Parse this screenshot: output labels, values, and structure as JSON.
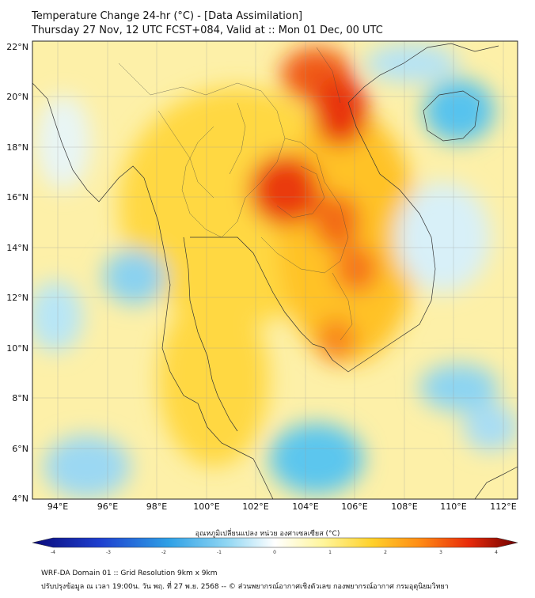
{
  "title": {
    "line1": "Temperature Change 24-hr (°C) - [Data Assimilation]",
    "line2": "Thursday 27 Nov, 12 UTC FCST+084, Valid at :: Mon 01 Dec, 00 UTC"
  },
  "map": {
    "lat_ticks": [
      "22°N",
      "20°N",
      "18°N",
      "16°N",
      "14°N",
      "12°N",
      "10°N",
      "8°N",
      "6°N",
      "4°N"
    ],
    "lon_ticks": [
      "94°E",
      "96°E",
      "98°E",
      "100°E",
      "102°E",
      "104°E",
      "106°E",
      "108°E",
      "110°E",
      "112°E"
    ]
  },
  "colorbar": {
    "label": "อุณหภูมิเปลี่ยนแปลง หน่วย องศาเซลเซียส (°C)",
    "ticks": [
      "-4",
      "-3",
      "-2",
      "-1",
      "0",
      "1",
      "2",
      "3",
      "4"
    ]
  },
  "footer": {
    "line1": "WRF-DA Domain 01 :: Grid Resolution 9km x 9km",
    "line2": "ปรับปรุงข้อมูล ณ เวลา 19:00น. วัน พฤ. ที่ 27 พ.ย. 2568 -- © ส่วนพยากรณ์อากาศเชิงตัวเลข กองพยากรณ์อากาศ กรมอุตุนิยมวิทยา"
  }
}
